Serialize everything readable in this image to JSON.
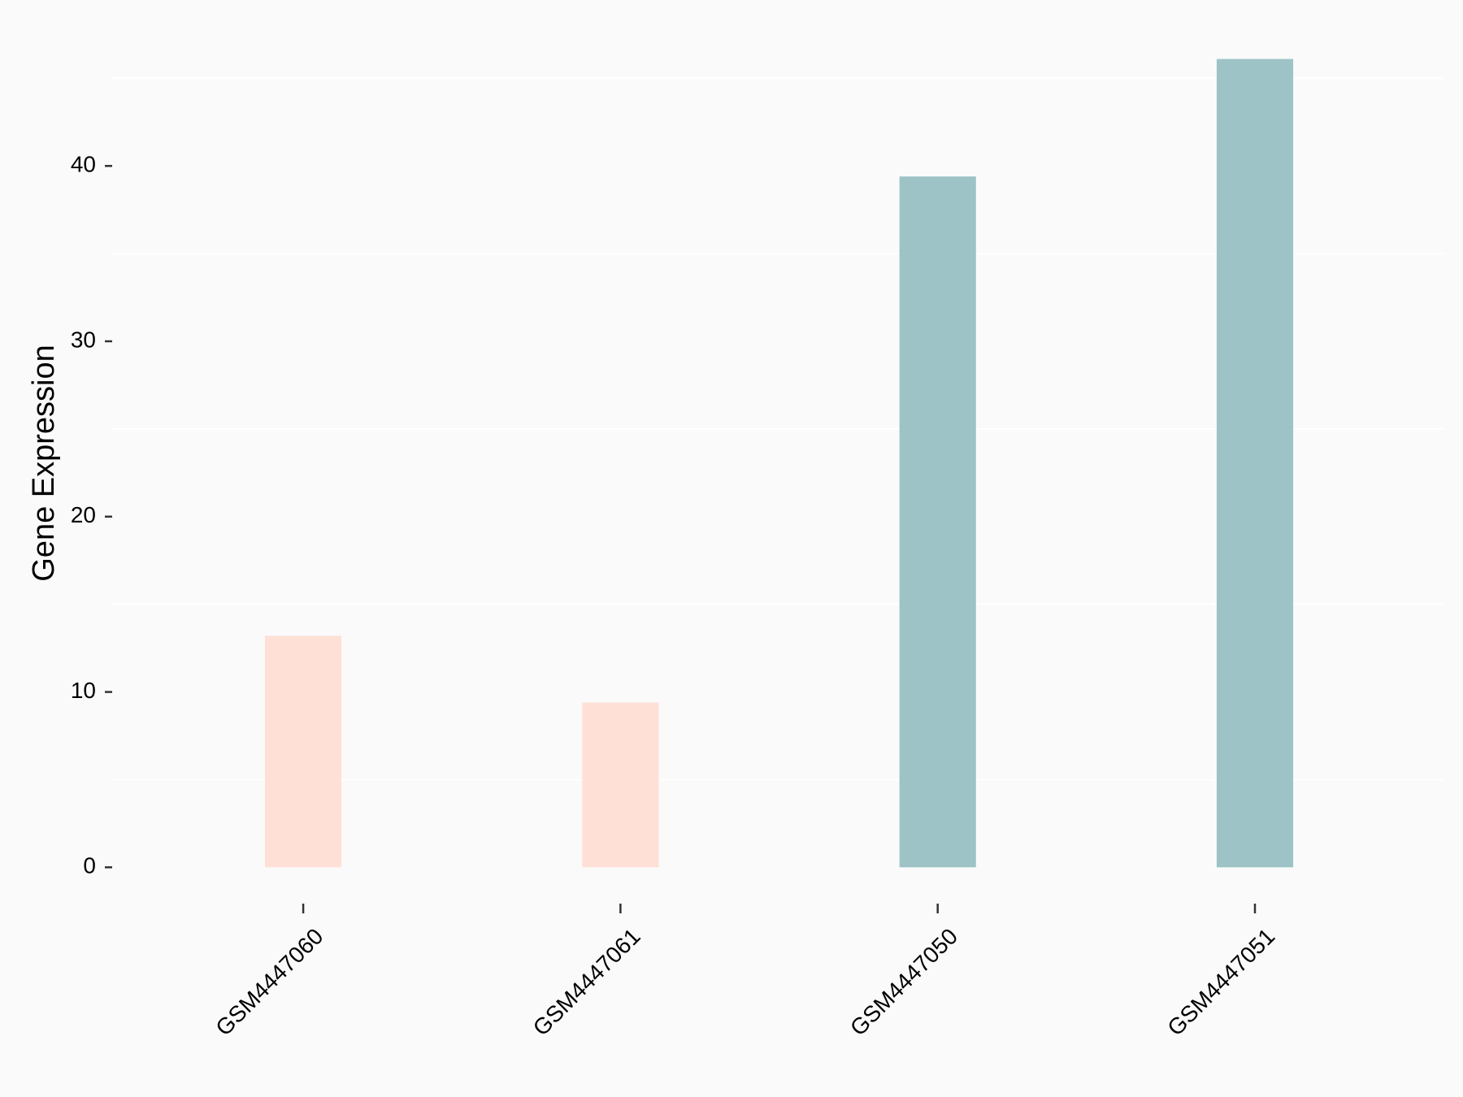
{
  "chart_data": {
    "type": "bar",
    "y_label": "Gene Expression",
    "categories": [
      "GSM4447060",
      "GSM4447061",
      "GSM4447050",
      "GSM4447051"
    ],
    "values": [
      13.2,
      9.4,
      39.4,
      46.1
    ],
    "colors": [
      "#ffe0d6",
      "#ffe0d6",
      "#9dc3c7",
      "#9dc3c7"
    ],
    "ylim": [
      -2.3,
      48.4
    ],
    "yticks": [
      0,
      10,
      20,
      30,
      40
    ],
    "minor_grid": [
      5,
      15,
      25,
      35,
      45
    ]
  }
}
